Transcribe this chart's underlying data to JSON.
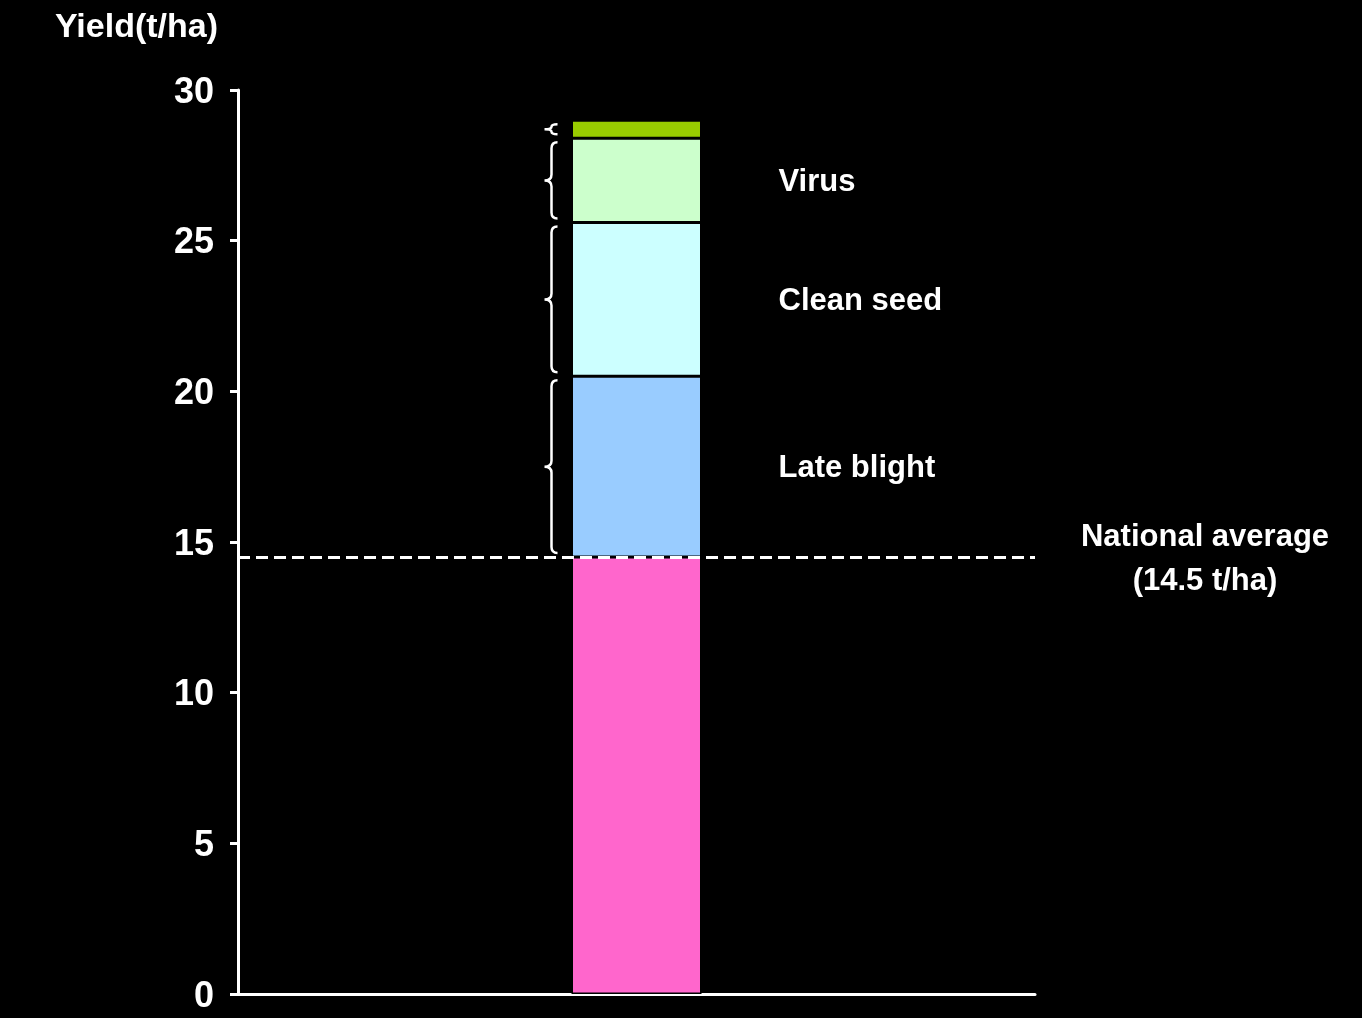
{
  "chart_data": {
    "type": "bar",
    "ylabel": "Yield(t/ha)",
    "categories": [
      null
    ],
    "stacked": true,
    "ylim": [
      0,
      30
    ],
    "yticks": [
      0,
      5,
      10,
      15,
      20,
      25,
      30
    ],
    "series": [
      {
        "color": "#ff66cc",
        "values": [
          14.5
        ]
      },
      {
        "name": "Late blight",
        "color": "#99ccff",
        "values": [
          6.0
        ]
      },
      {
        "name": "Clean seed",
        "color": "#ccffff",
        "values": [
          5.1
        ]
      },
      {
        "name": "Virus",
        "color": "#ccffcc",
        "values": [
          2.8
        ]
      },
      {
        "color": "#99cc00",
        "values": [
          0.6
        ]
      }
    ],
    "ref_lines": [
      {
        "axis": "y",
        "value": 14.5,
        "label": "National average\n(14.5 t/ha)",
        "color": "#ffffff",
        "line_style": "dashed"
      }
    ]
  }
}
